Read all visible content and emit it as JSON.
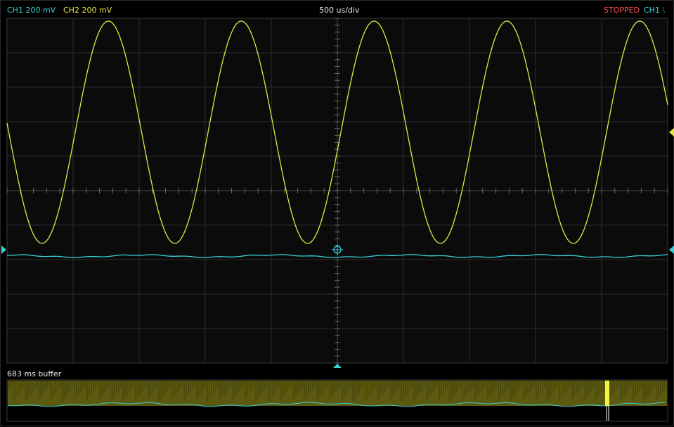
{
  "header": {
    "ch1_label": "CH1 200 mV",
    "ch2_label": "CH2 200 mV",
    "timebase": "500 us/div",
    "status": "STOPPED",
    "trigger_source": "CH1 ⧵"
  },
  "buffer": {
    "label": "683 ms buffer"
  },
  "colors": {
    "background": "#000000",
    "grid_bg": "#0b0b0b",
    "grid": "#3a3a3a",
    "ch1": "#3ad0d8",
    "ch2": "#e6e645",
    "status": "#ff4d4d",
    "buffer_fill": "#5c5a10",
    "buffer_window": "#f4f43a"
  },
  "icons": {
    "ch1_offset": "triangle-right-icon",
    "ch2_offset": "triangle-left-icon",
    "trigger_time": "triangle-up-icon",
    "trigger_point": "crosshair-circle-icon"
  }
}
